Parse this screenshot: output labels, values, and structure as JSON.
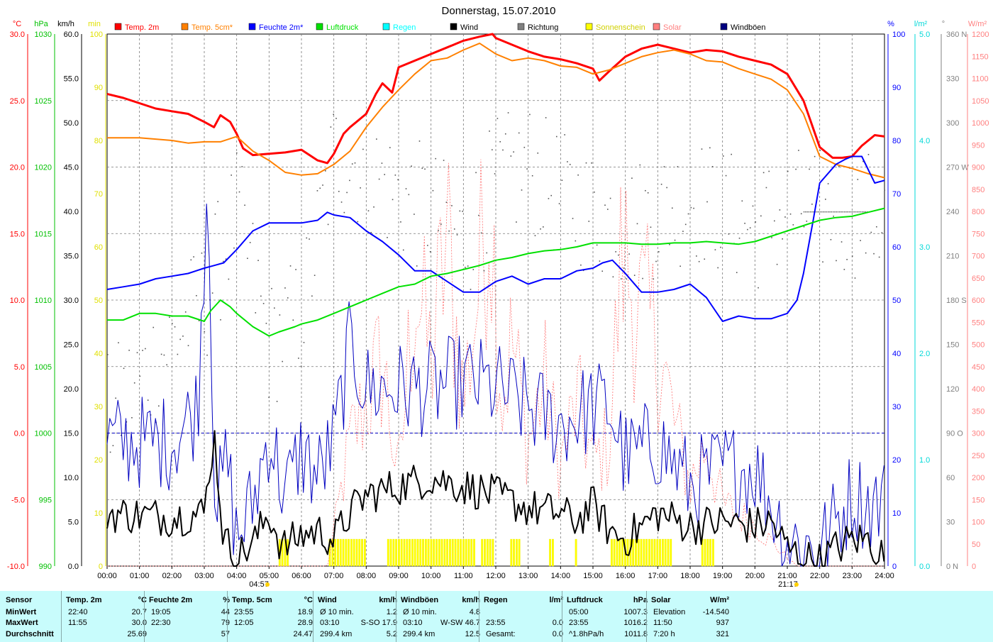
{
  "chart_data": {
    "type": "line",
    "title": "Donnerstag, 15.07.2010",
    "x_ticks": [
      "00:00",
      "01:00",
      "02:00",
      "03:00",
      "04:00",
      "05:00",
      "06:00",
      "07:00",
      "08:00",
      "09:00",
      "10:00",
      "11:00",
      "12:00",
      "13:00",
      "14:00",
      "15:00",
      "16:00",
      "17:00",
      "18:00",
      "19:00",
      "20:00",
      "21:00",
      "22:00",
      "23:00",
      "24:00"
    ],
    "sunrise": "04:57",
    "sunset": "21:17",
    "axes": {
      "temp": {
        "unit": "°C",
        "color": "#ff0000",
        "ticks": [
          "30.0",
          "25.0",
          "20.0",
          "15.0",
          "10.0",
          "5.0",
          "0.0",
          "-5.0",
          "-10.0"
        ]
      },
      "pressure": {
        "unit": "hPa",
        "color": "#00c000",
        "ticks": [
          "1030",
          "1025",
          "1020",
          "1015",
          "1010",
          "1005",
          "1000",
          "995",
          "990"
        ]
      },
      "wind": {
        "unit": "km/h",
        "color": "#000000",
        "ticks": [
          "60.0",
          "55.0",
          "50.0",
          "45.0",
          "40.0",
          "35.0",
          "30.0",
          "25.0",
          "20.0",
          "15.0",
          "10.0",
          "5.0",
          "0.0"
        ]
      },
      "sunshine": {
        "unit": "min",
        "color": "#e0e000",
        "ticks": [
          "100",
          "90",
          "80",
          "70",
          "60",
          "50",
          "40",
          "30",
          "20",
          "10",
          "0"
        ]
      },
      "humidity": {
        "unit": "%",
        "color": "#0000ff",
        "ticks": [
          "100",
          "90",
          "80",
          "70",
          "60",
          "50",
          "40",
          "30",
          "20",
          "10",
          "0"
        ]
      },
      "rain": {
        "unit": "l/m²",
        "color": "#00d8d8",
        "ticks": [
          "5.0",
          "4.0",
          "3.0",
          "2.0",
          "1.0",
          "0.0"
        ]
      },
      "direction": {
        "unit": "°",
        "color": "#808080",
        "ticks": [
          "360 N",
          "330",
          "300",
          "270 W",
          "240",
          "210",
          "180 S",
          "150",
          "120",
          "90 O",
          "60",
          "30",
          "0 N"
        ]
      },
      "solar": {
        "unit": "W/m²",
        "color": "#ff8080",
        "ticks": [
          "1200",
          "1150",
          "1100",
          "1050",
          "1000",
          "950",
          "900",
          "850",
          "800",
          "750",
          "700",
          "650",
          "600",
          "550",
          "500",
          "450",
          "400",
          "350",
          "300",
          "250",
          "200",
          "150",
          "100",
          "50",
          "0"
        ]
      }
    },
    "legend": [
      {
        "name": "Temp. 2m",
        "color": "#ff0000"
      },
      {
        "name": "Temp. 5cm*",
        "color": "#ff8000"
      },
      {
        "name": "Feuchte 2m*",
        "color": "#0000ff"
      },
      {
        "name": "Luftdruck",
        "color": "#00e000"
      },
      {
        "name": "Regen",
        "color": "#00ffff"
      },
      {
        "name": "Wind",
        "color": "#000000"
      },
      {
        "name": "Richtung",
        "color": "#808080"
      },
      {
        "name": "Sonnenschein",
        "color": "#ffff00"
      },
      {
        "name": "Solar",
        "color": "#ff8080"
      },
      {
        "name": "Windböen",
        "color": "#000080"
      }
    ],
    "series": [
      {
        "name": "Temp. 2m",
        "unit": "°C",
        "color": "#ff0000",
        "x": [
          0,
          0.5,
          1,
          1.5,
          2,
          2.5,
          3,
          3.3,
          3.5,
          3.8,
          4,
          4.2,
          4.5,
          5,
          5.5,
          6,
          6.5,
          6.8,
          7,
          7.3,
          7.5,
          8,
          8.3,
          8.5,
          8.8,
          9,
          9.5,
          10,
          10.5,
          11,
          11.5,
          11.9,
          12,
          12.5,
          13,
          13.5,
          14,
          14.5,
          15,
          15.2,
          15.5,
          16,
          16.5,
          17,
          17.5,
          18,
          18.5,
          19,
          19.5,
          20,
          20.5,
          21,
          21.5,
          22,
          22.4,
          22.7,
          23,
          23.3,
          23.7,
          24
        ],
        "y": [
          25.5,
          25.2,
          24.8,
          24.4,
          24.2,
          24.0,
          23.4,
          23.0,
          23.9,
          23.4,
          22.5,
          21.4,
          20.9,
          21.0,
          21.1,
          21.3,
          20.5,
          20.3,
          21.0,
          22.5,
          23.0,
          24.0,
          25.5,
          26.3,
          25.6,
          27.5,
          28.0,
          28.5,
          29.0,
          29.5,
          29.8,
          30.0,
          29.7,
          29.2,
          28.7,
          28.3,
          28.1,
          27.8,
          27.4,
          26.5,
          27.2,
          28.3,
          28.9,
          29.2,
          28.9,
          28.6,
          28.8,
          28.7,
          28.3,
          28.0,
          27.7,
          27.0,
          25.0,
          21.5,
          20.7,
          20.7,
          20.8,
          21.6,
          22.4,
          22.3
        ]
      },
      {
        "name": "Temp. 5cm*",
        "unit": "°C",
        "color": "#ff8000",
        "x": [
          0,
          1,
          2,
          2.5,
          3,
          3.5,
          4,
          4.5,
          5,
          5.5,
          6,
          6.5,
          7,
          7.5,
          8,
          8.5,
          9,
          9.5,
          10,
          10.5,
          11,
          11.5,
          12,
          12.5,
          13,
          13.5,
          14,
          14.5,
          15,
          15.5,
          16,
          16.5,
          17,
          17.5,
          18,
          18.5,
          19,
          19.5,
          20,
          20.5,
          21,
          21.5,
          22,
          22.5,
          23,
          23.5,
          24
        ],
        "y": [
          22.2,
          22.2,
          22.0,
          21.8,
          21.9,
          21.9,
          22.3,
          21.2,
          20.5,
          19.6,
          19.4,
          19.5,
          20.2,
          21.2,
          23.0,
          24.5,
          25.8,
          27.0,
          28.0,
          28.2,
          28.8,
          29.3,
          28.5,
          28.0,
          28.2,
          28.0,
          27.6,
          27.5,
          27.0,
          27.3,
          27.8,
          28.3,
          28.6,
          28.8,
          28.5,
          28.0,
          27.9,
          27.4,
          27.0,
          26.6,
          25.8,
          24.0,
          20.8,
          20.2,
          19.9,
          19.5,
          19.2
        ]
      },
      {
        "name": "Feuchte 2m*",
        "unit": "%",
        "color": "#0000ff",
        "x": [
          0,
          0.5,
          1,
          1.5,
          2,
          2.5,
          3,
          3.3,
          3.6,
          4,
          4.5,
          5,
          5.5,
          6,
          6.5,
          6.8,
          7,
          7.5,
          8,
          8.5,
          9,
          9.5,
          10,
          10.5,
          11,
          11.5,
          12,
          12.5,
          13,
          13.5,
          14,
          14.5,
          15,
          15.3,
          15.6,
          16,
          16.5,
          17,
          17.5,
          18,
          18.5,
          19,
          19.5,
          20,
          20.5,
          21,
          21.3,
          21.5,
          21.8,
          22,
          22.5,
          22.8,
          23,
          23.3,
          23.7,
          24
        ],
        "y": [
          52.0,
          52.5,
          53.0,
          54.0,
          54.5,
          55.0,
          56.0,
          56.5,
          57.0,
          59.5,
          63.0,
          64.5,
          64.5,
          64.5,
          65.0,
          66.5,
          66.0,
          65.5,
          63.0,
          61.0,
          58.5,
          55.5,
          55.5,
          53.5,
          51.5,
          51.5,
          53.5,
          54.5,
          53.0,
          54.0,
          54.0,
          55.5,
          56.0,
          57.0,
          57.5,
          55.0,
          51.5,
          51.5,
          52.0,
          53.0,
          50.5,
          46.0,
          47.0,
          46.5,
          46.5,
          47.5,
          50.0,
          55.0,
          65.0,
          72.0,
          75.5,
          76.5,
          77.0,
          77.0,
          72.0,
          72.5
        ]
      },
      {
        "name": "Luftdruck",
        "unit": "hPa",
        "color": "#00e000",
        "x": [
          0,
          0.5,
          1,
          1.5,
          2,
          2.5,
          3,
          3.2,
          3.5,
          3.8,
          4,
          4.5,
          5,
          5.3,
          5.8,
          6,
          6.5,
          7,
          7.5,
          8,
          8.5,
          9,
          9.5,
          10,
          10.5,
          11,
          11.5,
          12,
          12.5,
          13,
          13.5,
          14,
          14.5,
          15,
          15.5,
          16,
          16.5,
          17,
          17.5,
          18,
          18.5,
          19,
          19.5,
          20,
          20.5,
          21,
          21.5,
          22,
          22.5,
          23,
          23.5,
          24
        ],
        "y": [
          1008.5,
          1008.5,
          1009.0,
          1009.0,
          1008.8,
          1008.8,
          1008.4,
          1009.2,
          1010.0,
          1009.5,
          1009.0,
          1008.0,
          1007.3,
          1007.6,
          1008.0,
          1008.2,
          1008.5,
          1009.0,
          1009.5,
          1010.0,
          1010.5,
          1011.0,
          1011.2,
          1011.8,
          1012.0,
          1012.3,
          1012.6,
          1013.0,
          1013.2,
          1013.5,
          1013.7,
          1013.8,
          1014.0,
          1014.3,
          1014.3,
          1014.3,
          1014.2,
          1014.2,
          1014.3,
          1014.3,
          1014.4,
          1014.3,
          1014.2,
          1014.4,
          1014.8,
          1015.2,
          1015.6,
          1016.0,
          1016.2,
          1016.3,
          1016.6,
          1016.9
        ]
      }
    ],
    "wind_base": [
      {
        "t": 0,
        "v": 6
      },
      {
        "t": 2,
        "v": 5.5
      },
      {
        "t": 3,
        "v": 6
      },
      {
        "t": 3.3,
        "v": 15
      },
      {
        "t": 3.6,
        "v": 3
      },
      {
        "t": 4,
        "v": 1
      },
      {
        "t": 4.5,
        "v": 2.5
      },
      {
        "t": 5,
        "v": 6
      },
      {
        "t": 5.4,
        "v": 2
      },
      {
        "t": 6,
        "v": 3.5
      },
      {
        "t": 6.5,
        "v": 4
      },
      {
        "t": 7,
        "v": 3
      },
      {
        "t": 7.5,
        "v": 6
      },
      {
        "t": 8,
        "v": 8
      },
      {
        "t": 9,
        "v": 9
      },
      {
        "t": 10,
        "v": 10
      },
      {
        "t": 11,
        "v": 9
      },
      {
        "t": 12,
        "v": 8
      },
      {
        "t": 13,
        "v": 6.5
      },
      {
        "t": 14,
        "v": 6
      },
      {
        "t": 14.5,
        "v": 5
      },
      {
        "t": 15,
        "v": 7
      },
      {
        "t": 15.5,
        "v": 4
      },
      {
        "t": 16,
        "v": 3
      },
      {
        "t": 17,
        "v": 6
      },
      {
        "t": 18,
        "v": 4.5
      },
      {
        "t": 19,
        "v": 5
      },
      {
        "t": 20,
        "v": 4.5
      },
      {
        "t": 20.5,
        "v": 5
      },
      {
        "t": 21,
        "v": 2
      },
      {
        "t": 21.5,
        "v": 1
      },
      {
        "t": 22,
        "v": 0.5
      },
      {
        "t": 22.5,
        "v": 2
      },
      {
        "t": 23,
        "v": 3
      },
      {
        "t": 23.5,
        "v": 3
      },
      {
        "t": 24,
        "v": 1
      }
    ],
    "gust_base": [
      {
        "t": 0,
        "v": 14
      },
      {
        "t": 2,
        "v": 14
      },
      {
        "t": 2.8,
        "v": 18
      },
      {
        "t": 3.1,
        "v": 45
      },
      {
        "t": 3.35,
        "v": 6
      },
      {
        "t": 3.7,
        "v": 12
      },
      {
        "t": 4,
        "v": 3
      },
      {
        "t": 4.5,
        "v": 7
      },
      {
        "t": 5,
        "v": 15
      },
      {
        "t": 5.5,
        "v": 8
      },
      {
        "t": 6,
        "v": 13
      },
      {
        "t": 6.5,
        "v": 10
      },
      {
        "t": 7,
        "v": 14
      },
      {
        "t": 7.5,
        "v": 25
      },
      {
        "t": 8,
        "v": 20
      },
      {
        "t": 9,
        "v": 20
      },
      {
        "t": 10,
        "v": 20
      },
      {
        "t": 11,
        "v": 21
      },
      {
        "t": 12,
        "v": 20
      },
      {
        "t": 13,
        "v": 18
      },
      {
        "t": 14,
        "v": 16
      },
      {
        "t": 15,
        "v": 18
      },
      {
        "t": 15.5,
        "v": 18
      },
      {
        "t": 16,
        "v": 12
      },
      {
        "t": 17,
        "v": 14
      },
      {
        "t": 18,
        "v": 9
      },
      {
        "t": 19,
        "v": 11
      },
      {
        "t": 20,
        "v": 11
      },
      {
        "t": 20.5,
        "v": 7
      },
      {
        "t": 21,
        "v": 3
      },
      {
        "t": 22,
        "v": 2
      },
      {
        "t": 22.5,
        "v": 5
      },
      {
        "t": 23,
        "v": 8
      },
      {
        "t": 23.5,
        "v": 7
      },
      {
        "t": 24,
        "v": 7
      }
    ],
    "sunshine_blocks": [
      [
        5.3,
        5.55
      ],
      [
        6.85,
        7.95
      ],
      [
        8.65,
        11.35
      ],
      [
        11.55,
        11.9
      ],
      [
        12.45,
        12.75
      ],
      [
        13.65,
        13.75
      ],
      [
        14.45,
        14.5
      ],
      [
        15.55,
        17.45
      ],
      [
        18.35,
        18.75
      ]
    ]
  },
  "summary": {
    "headers": {
      "sensor": "Sensor",
      "temp2m": "Temp. 2m",
      "temp2m_unit": "°C",
      "feuchte": "Feuchte 2m",
      "feuchte_unit": "%",
      "temp5cm": "Temp. 5cm",
      "temp5cm_unit": "°C",
      "wind": "Wind",
      "wind_unit": "km/h",
      "boeen": "Windböen",
      "boeen_unit": "km/h",
      "regen": "Regen",
      "regen_unit": "l/m²",
      "luftdruck": "Luftdruck",
      "luftdruck_unit": "hPa",
      "solar": "Solar",
      "solar_unit": "W/m²"
    },
    "rows": [
      "MinWert",
      "MaxWert",
      "Durchschnitt"
    ],
    "temp2m": [
      [
        "22:40",
        "20.7"
      ],
      [
        "11:55",
        "30.0"
      ],
      [
        "",
        "25.69"
      ]
    ],
    "feuchte": [
      [
        "19:05",
        "44"
      ],
      [
        "22:30",
        "79"
      ],
      [
        "",
        "57"
      ]
    ],
    "temp5cm": [
      [
        "23:55",
        "18.9"
      ],
      [
        "12:05",
        "28.9"
      ],
      [
        "",
        "24.47"
      ]
    ],
    "wind": [
      [
        "Ø 10 min.",
        "1.2"
      ],
      [
        "03:10",
        "S-SO 17.9"
      ],
      [
        "299.4 km",
        "5.2"
      ]
    ],
    "boeen": [
      [
        "Ø 10 min.",
        "4.8"
      ],
      [
        "03:10",
        "W-SW 46.7"
      ],
      [
        "299.4 km",
        "12.5"
      ]
    ],
    "regen": [
      [
        "",
        ""
      ],
      [
        "23:55",
        "0.0"
      ],
      [
        "Gesamt:",
        "0.0"
      ]
    ],
    "luftdruck": [
      [
        "05:00",
        "1007.3"
      ],
      [
        "23:55",
        "1016.2"
      ],
      [
        "^1.8hPa/h",
        "1011.8"
      ]
    ],
    "solar": [
      [
        "Elevation",
        "-14.540"
      ],
      [
        "11:50",
        "937"
      ],
      [
        "7:20 h",
        "321"
      ]
    ]
  }
}
